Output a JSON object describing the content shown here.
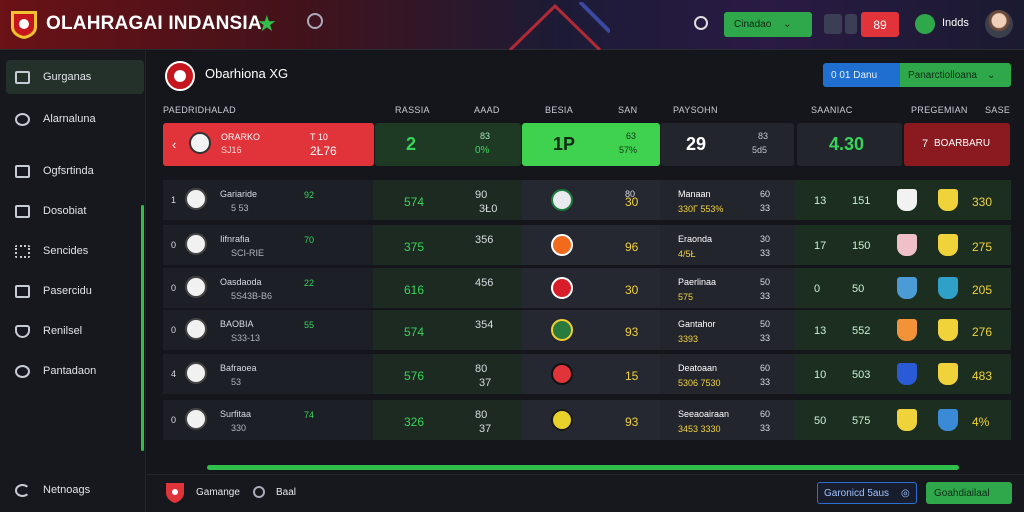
{
  "header": {
    "title": "OLAHRAGAI INDANSIA",
    "green_button": "Cinadao",
    "red_badge": "89",
    "user": "Indds"
  },
  "sidebar": {
    "items": [
      {
        "label": "Gurganas",
        "icon": "dashboard-icon"
      },
      {
        "label": "Alarnaluna",
        "icon": "user-icon"
      },
      {
        "label": "Ogfsrtinda",
        "icon": "stats-icon"
      },
      {
        "label": "Dosobiat",
        "icon": "calendar-icon"
      },
      {
        "label": "Sencides",
        "icon": "grid-icon"
      },
      {
        "label": "Pasercidu",
        "icon": "monitor-icon"
      },
      {
        "label": "Renilsel",
        "icon": "shield-icon"
      },
      {
        "label": "Pantadaon",
        "icon": "globe-icon"
      },
      {
        "label": "Netnoags",
        "icon": "refresh-icon"
      }
    ]
  },
  "panel": {
    "title": "Obarhiona XG",
    "btn_blue": "0 01 Danu",
    "btn_green": "Panarctiolloana"
  },
  "columns": [
    "PAEDRIDHALAD",
    "RASSIA",
    "AAAD",
    "BESIA",
    "SAN",
    "PAYSOHN",
    "SAANIAC",
    "PREGEMIAN",
    "SASE"
  ],
  "scorecards": [
    {
      "name": "ORARKO",
      "sub": "SJ16",
      "val1": "T 10",
      "val2": "2Ł76"
    },
    {
      "big": "2",
      "val1": "83",
      "val2": "0%"
    },
    {
      "big": "1P",
      "val1": "63",
      "val2": "57%"
    },
    {
      "big": "29",
      "val1": "83",
      "val2": "5d5"
    },
    {
      "big": "4.30"
    },
    {
      "big": "7",
      "text": "BOARBARU"
    }
  ],
  "rows": [
    {
      "n": "1",
      "name": "Gariaride",
      "sub": "5 53",
      "v1": "92",
      "v2": "574",
      "v3": "90",
      "v4": "3Ł0",
      "v5": "80",
      "v6": "30",
      "t": "Manaan",
      "t2": "330Г 553%",
      "t3": "60",
      "t4": "33",
      "e1": "13",
      "e2": "151",
      "e3": "330"
    },
    {
      "n": "0",
      "name": "Iifnrafia",
      "sub": "SCI-RIE",
      "v1": "70",
      "v2": "375",
      "v3": "356",
      "v4": "",
      "v5": "",
      "v6": "96",
      "t": "Eraonda",
      "t2": "4/5Ł",
      "t3": "30",
      "t4": "33",
      "e1": "17",
      "e2": "150",
      "e3": "275"
    },
    {
      "n": "0",
      "name": "Oasdaoda",
      "sub": "5S43B-B6",
      "v1": "22",
      "v2": "616",
      "v3": "456",
      "v4": "",
      "v5": "",
      "v6": "30",
      "t": "Paerlinaa",
      "t2": "575",
      "t3": "50",
      "t4": "33",
      "e1": "0",
      "e2": "50",
      "e3": "205"
    },
    {
      "n": "0",
      "name": "BAOBIA",
      "sub": "S33-13",
      "v1": "55",
      "v2": "574",
      "v3": "354",
      "v4": "",
      "v5": "",
      "v6": "93",
      "t": "Gantahor",
      "t2": "3393",
      "t3": "50",
      "t4": "33",
      "e1": "13",
      "e2": "552",
      "e3": "276"
    },
    {
      "n": "4",
      "name": "Bafraoea",
      "sub": "53",
      "v1": "",
      "v2": "576",
      "v3": "80",
      "v4": "37",
      "v5": "",
      "v6": "15",
      "t": "Deatoaan",
      "t2": "5306 7530",
      "t3": "60",
      "t4": "33",
      "e1": "10",
      "e2": "503",
      "e3": "483"
    },
    {
      "n": "0",
      "name": "Surfitaa",
      "sub": "330",
      "v1": "74",
      "v2": "326",
      "v3": "80",
      "v4": "37",
      "v5": "",
      "v6": "93",
      "t": "Seeaoairaan",
      "t2": "3453 3330",
      "t3": "60",
      "t4": "33",
      "e1": "50",
      "e2": "575",
      "e3": "4%"
    }
  ],
  "footer": {
    "label1": "Gamange",
    "label2": "Baal",
    "btn_blue": "Garonicd 5aus",
    "btn_green": "Goahdiailaal"
  }
}
